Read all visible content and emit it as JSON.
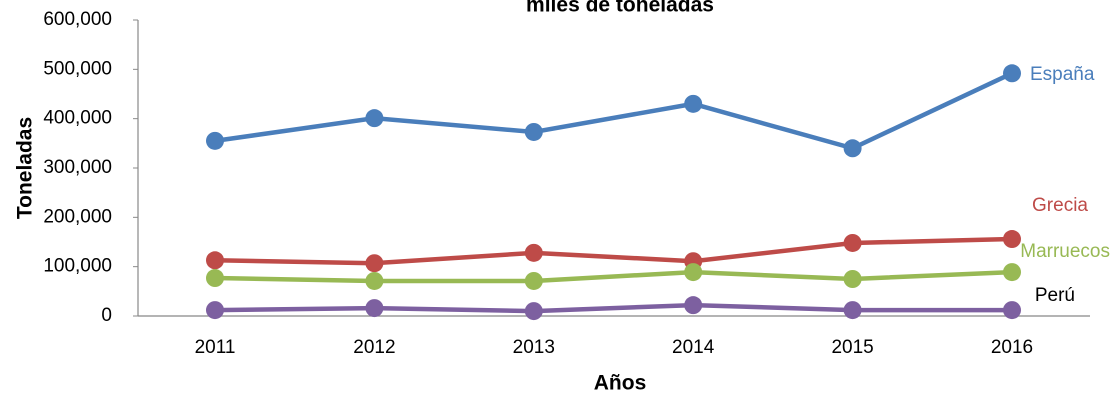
{
  "chart_data": {
    "type": "line",
    "title": "miles de toneladas",
    "x_label": "Años",
    "y_label": "Toneladas",
    "categories": [
      "2011",
      "2012",
      "2013",
      "2014",
      "2015",
      "2016"
    ],
    "series": [
      {
        "name": "España",
        "color": "#4a7ebb",
        "label_color": "#4a7ebb",
        "values": [
          355000,
          401000,
          373000,
          430000,
          340000,
          492000
        ]
      },
      {
        "name": "Grecia",
        "color": "#be4b48",
        "label_color": "#be4b48",
        "values": [
          113000,
          107000,
          128000,
          111000,
          148000,
          156000
        ]
      },
      {
        "name": "Marruecos",
        "color": "#98b954",
        "label_color": "#98b954",
        "values": [
          77000,
          71000,
          71000,
          89000,
          75000,
          89000
        ]
      },
      {
        "name": "Perú",
        "color": "#7d60a0",
        "label_color": "#000000",
        "values": [
          12000,
          16000,
          10000,
          22000,
          12000,
          12000
        ]
      }
    ],
    "ylim": [
      0,
      600000
    ],
    "yticks": [
      {
        "value": 0,
        "label": "0"
      },
      {
        "value": 100000,
        "label": "100,000"
      },
      {
        "value": 200000,
        "label": "200,000"
      },
      {
        "value": 300000,
        "label": "300,000"
      },
      {
        "value": 400000,
        "label": "400,000"
      },
      {
        "value": 500000,
        "label": "500,000"
      },
      {
        "value": 600000,
        "label": "600,000"
      }
    ],
    "grid": false
  }
}
